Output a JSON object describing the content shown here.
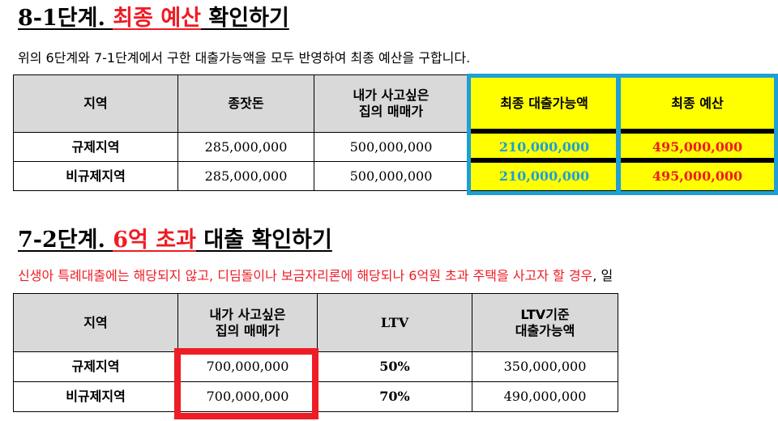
{
  "section1": {
    "title_prefix": "8-1단계. ",
    "title_highlight": "최종 예산",
    "title_suffix": " 확인하기",
    "description": "위의 6단계와 7-1단계에서 구한 대출가능액을 모두 반영하여 최종 예산을 구합니다.",
    "headers": [
      "지역",
      "종잣돈",
      "내가 사고싶은\n집의 매매가",
      "최종 대출가능액",
      "최종 예산"
    ],
    "rows": [
      {
        "region": "규제지역",
        "seed": "285,000,000",
        "price": "500,000,000",
        "loan": "210,000,000",
        "budget": "495,000,000"
      },
      {
        "region": "비규제지역",
        "seed": "285,000,000",
        "price": "500,000,000",
        "loan": "210,000,000",
        "budget": "495,000,000"
      }
    ]
  },
  "section2": {
    "title_prefix": "7-2단계. ",
    "title_highlight": "6억 초과",
    "title_suffix": " 대출 확인하기",
    "description_red": "신생아 특례대출에는 해당되지 않고, 디딤돌이나 보금자리론에 해당되나 6억원 초과 주택을 사고자 할 경우",
    "description_black": ", 일",
    "headers": [
      "지역",
      "내가 사고싶은\n집의 매매가",
      "LTV",
      "LTV기준\n대출가능액"
    ],
    "rows": [
      {
        "region": "규제지역",
        "price": "700,000,000",
        "ltv": "50%",
        "loan": "350,000,000"
      },
      {
        "region": "비규제지역",
        "price": "700,000,000",
        "ltv": "70%",
        "loan": "490,000,000"
      }
    ]
  },
  "colors": {
    "highlight_red": "#ee1c25",
    "accent_blue": "#1e9fd6",
    "cell_yellow": "#ffff00",
    "header_gray": "#d9d9d9"
  }
}
